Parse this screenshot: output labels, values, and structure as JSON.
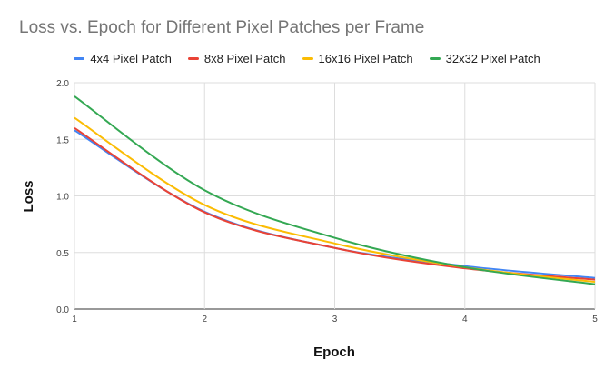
{
  "chart_data": {
    "type": "line",
    "title": "Loss vs. Epoch for Different Pixel Patches per Frame",
    "xlabel": "Epoch",
    "ylabel": "Loss",
    "x": [
      1,
      2,
      3,
      4,
      5
    ],
    "xticks": [
      "1",
      "2",
      "3",
      "4",
      "5"
    ],
    "yticks": [
      "0.0",
      "0.5",
      "1.0",
      "1.5",
      "2.0"
    ],
    "xlim": [
      1,
      5
    ],
    "ylim": [
      0,
      2.0
    ],
    "grid": true,
    "legend_position": "top",
    "series": [
      {
        "name": "4x4 Pixel Patch",
        "color": "#4285F4",
        "values": [
          1.58,
          0.86,
          0.54,
          0.38,
          0.275
        ]
      },
      {
        "name": "8x8 Pixel Patch",
        "color": "#EA4335",
        "values": [
          1.6,
          0.855,
          0.54,
          0.36,
          0.26
        ]
      },
      {
        "name": "16x16 Pixel Patch",
        "color": "#FBBC04",
        "values": [
          1.69,
          0.92,
          0.58,
          0.37,
          0.24
        ]
      },
      {
        "name": "32x32 Pixel Patch",
        "color": "#34A853",
        "values": [
          1.88,
          1.05,
          0.63,
          0.37,
          0.22
        ]
      }
    ]
  }
}
